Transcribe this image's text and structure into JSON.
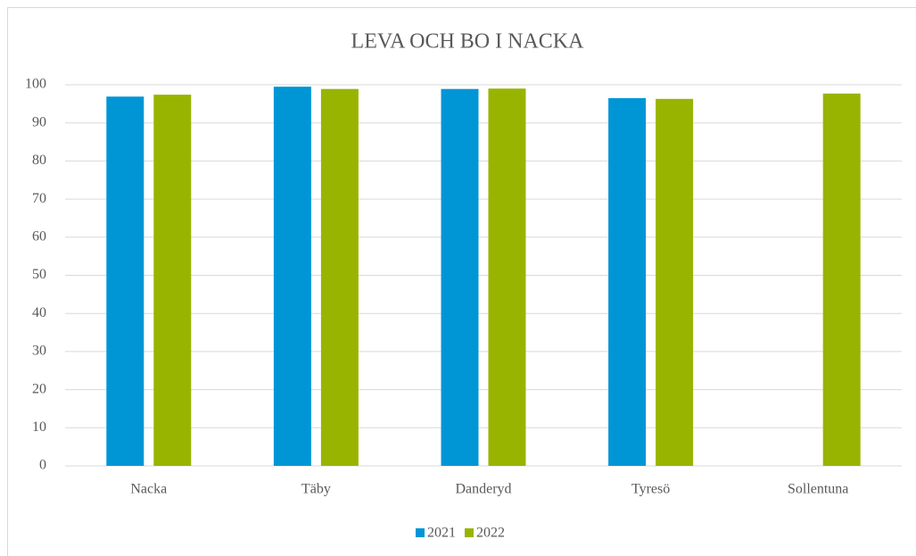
{
  "chart_data": {
    "type": "bar",
    "title": "LEVA OCH BO I NACKA",
    "categories": [
      "Nacka",
      "Täby",
      "Danderyd",
      "Tyresö",
      "Sollentuna"
    ],
    "series": [
      {
        "name": "2021",
        "color": "#0096d6",
        "values": [
          96.9,
          99.5,
          98.9,
          96.5,
          null
        ]
      },
      {
        "name": "2022",
        "color": "#99b400",
        "values": [
          97.4,
          98.9,
          99.0,
          96.3,
          97.7
        ]
      }
    ],
    "ylim": [
      0,
      100
    ],
    "yticks": [
      0,
      10,
      20,
      30,
      40,
      50,
      60,
      70,
      80,
      90,
      100
    ],
    "grid": true,
    "legend": "bottom"
  }
}
